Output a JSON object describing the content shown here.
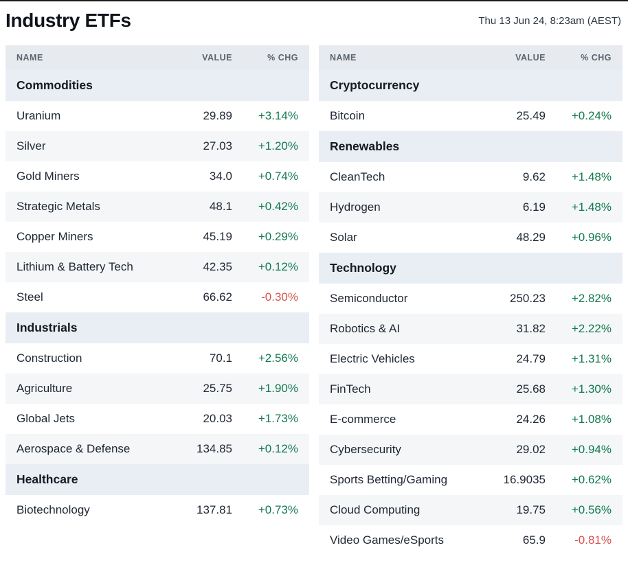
{
  "colors": {
    "positive": "#127a4e",
    "negative": "#d9534f"
  },
  "chart_data": {
    "type": "table",
    "title": "Industry ETFs",
    "timestamp": "Thu 13 Jun 24, 8:23am (AEST)",
    "columns": [
      "NAME",
      "VALUE",
      "% CHG"
    ],
    "tables": [
      {
        "id": "left",
        "sections": [
          {
            "title": "Commodities",
            "rows": [
              {
                "name": "Uranium",
                "value": "29.89",
                "chg": "+3.14%"
              },
              {
                "name": "Silver",
                "value": "27.03",
                "chg": "+1.20%"
              },
              {
                "name": "Gold Miners",
                "value": "34.0",
                "chg": "+0.74%"
              },
              {
                "name": "Strategic Metals",
                "value": "48.1",
                "chg": "+0.42%"
              },
              {
                "name": "Copper Miners",
                "value": "45.19",
                "chg": "+0.29%"
              },
              {
                "name": "Lithium & Battery Tech",
                "value": "42.35",
                "chg": "+0.12%"
              },
              {
                "name": "Steel",
                "value": "66.62",
                "chg": "-0.30%"
              }
            ]
          },
          {
            "title": "Industrials",
            "rows": [
              {
                "name": "Construction",
                "value": "70.1",
                "chg": "+2.56%"
              },
              {
                "name": "Agriculture",
                "value": "25.75",
                "chg": "+1.90%"
              },
              {
                "name": "Global Jets",
                "value": "20.03",
                "chg": "+1.73%"
              },
              {
                "name": "Aerospace & Defense",
                "value": "134.85",
                "chg": "+0.12%"
              }
            ]
          },
          {
            "title": "Healthcare",
            "rows": [
              {
                "name": "Biotechnology",
                "value": "137.81",
                "chg": "+0.73%"
              }
            ]
          }
        ]
      },
      {
        "id": "right",
        "sections": [
          {
            "title": "Cryptocurrency",
            "rows": [
              {
                "name": "Bitcoin",
                "value": "25.49",
                "chg": "+0.24%"
              }
            ]
          },
          {
            "title": "Renewables",
            "rows": [
              {
                "name": "CleanTech",
                "value": "9.62",
                "chg": "+1.48%"
              },
              {
                "name": "Hydrogen",
                "value": "6.19",
                "chg": "+1.48%"
              },
              {
                "name": "Solar",
                "value": "48.29",
                "chg": "+0.96%"
              }
            ]
          },
          {
            "title": "Technology",
            "rows": [
              {
                "name": "Semiconductor",
                "value": "250.23",
                "chg": "+2.82%"
              },
              {
                "name": "Robotics & AI",
                "value": "31.82",
                "chg": "+2.22%"
              },
              {
                "name": "Electric Vehicles",
                "value": "24.79",
                "chg": "+1.31%"
              },
              {
                "name": "FinTech",
                "value": "25.68",
                "chg": "+1.30%"
              },
              {
                "name": "E-commerce",
                "value": "24.26",
                "chg": "+1.08%"
              },
              {
                "name": "Cybersecurity",
                "value": "29.02",
                "chg": "+0.94%"
              },
              {
                "name": "Sports Betting/Gaming",
                "value": "16.9035",
                "chg": "+0.62%"
              },
              {
                "name": "Cloud Computing",
                "value": "19.75",
                "chg": "+0.56%"
              },
              {
                "name": "Video Games/eSports",
                "value": "65.9",
                "chg": "-0.81%"
              }
            ]
          }
        ]
      }
    ]
  }
}
